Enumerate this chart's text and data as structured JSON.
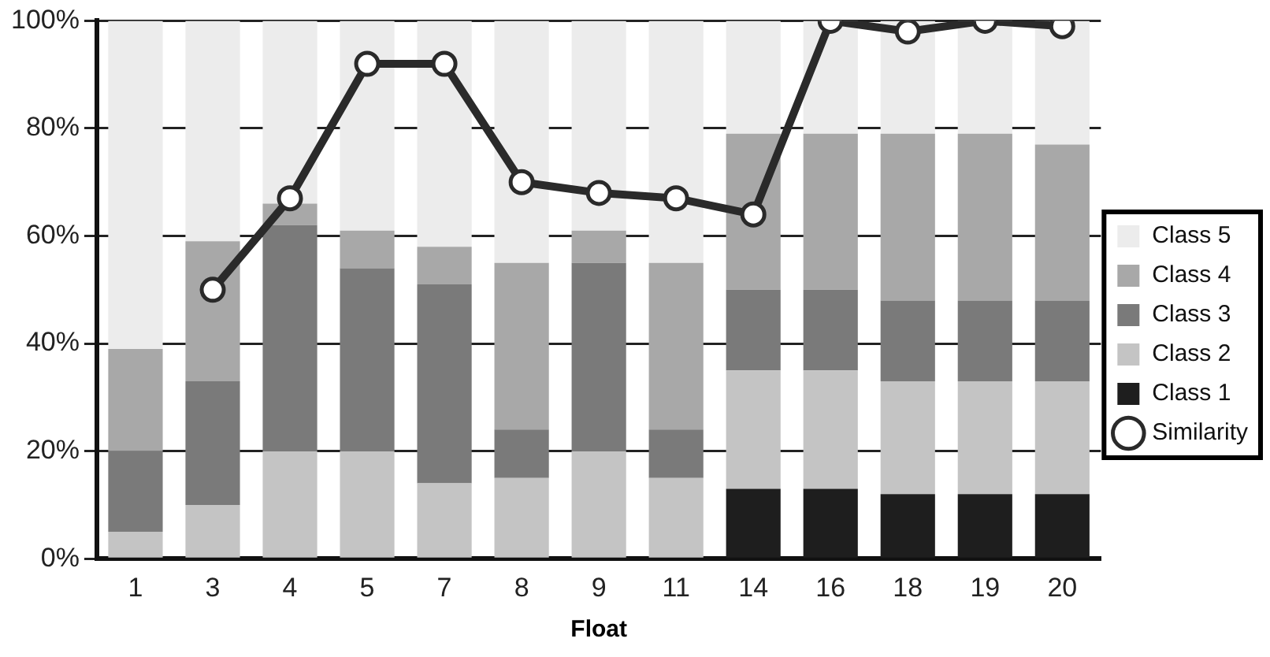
{
  "chart_data": {
    "type": "bar",
    "stacked": true,
    "xlabel": "Float",
    "categories": [
      "1",
      "3",
      "4",
      "5",
      "7",
      "8",
      "9",
      "11",
      "14",
      "16",
      "18",
      "19",
      "20"
    ],
    "series": [
      {
        "name": "Class 1",
        "color": "#1e1e1e",
        "values": [
          0,
          0,
          0,
          0,
          0,
          0,
          0,
          0,
          13,
          13,
          12,
          12,
          12
        ]
      },
      {
        "name": "Class 2",
        "color": "#c4c4c4",
        "values": [
          5,
          10,
          20,
          20,
          14,
          15,
          20,
          15,
          22,
          22,
          21,
          21,
          21
        ]
      },
      {
        "name": "Class 3",
        "color": "#7a7a7a",
        "values": [
          15,
          23,
          42,
          34,
          37,
          9,
          35,
          9,
          15,
          15,
          15,
          15,
          15
        ]
      },
      {
        "name": "Class 4",
        "color": "#a8a8a8",
        "values": [
          19,
          26,
          4,
          7,
          7,
          31,
          6,
          31,
          29,
          29,
          31,
          31,
          29
        ]
      },
      {
        "name": "Class 5",
        "color": "#ececec",
        "values": [
          61,
          41,
          34,
          39,
          42,
          45,
          39,
          45,
          21,
          21,
          21,
          21,
          23
        ]
      },
      {
        "name": "Similarity",
        "type": "line",
        "color": "#2a2a2a",
        "marker": "circle",
        "values": [
          null,
          50,
          67,
          92,
          92,
          70,
          68,
          67,
          64,
          100,
          98,
          100,
          99
        ]
      }
    ],
    "ylim": [
      0,
      100
    ],
    "yticks": [
      {
        "value": 0,
        "label": "0%"
      },
      {
        "value": 20,
        "label": "20%"
      },
      {
        "value": 40,
        "label": "40%"
      },
      {
        "value": 60,
        "label": "60%"
      },
      {
        "value": 80,
        "label": "80%"
      },
      {
        "value": 100,
        "label": "100%"
      }
    ],
    "grid": "y",
    "legend": "right"
  }
}
